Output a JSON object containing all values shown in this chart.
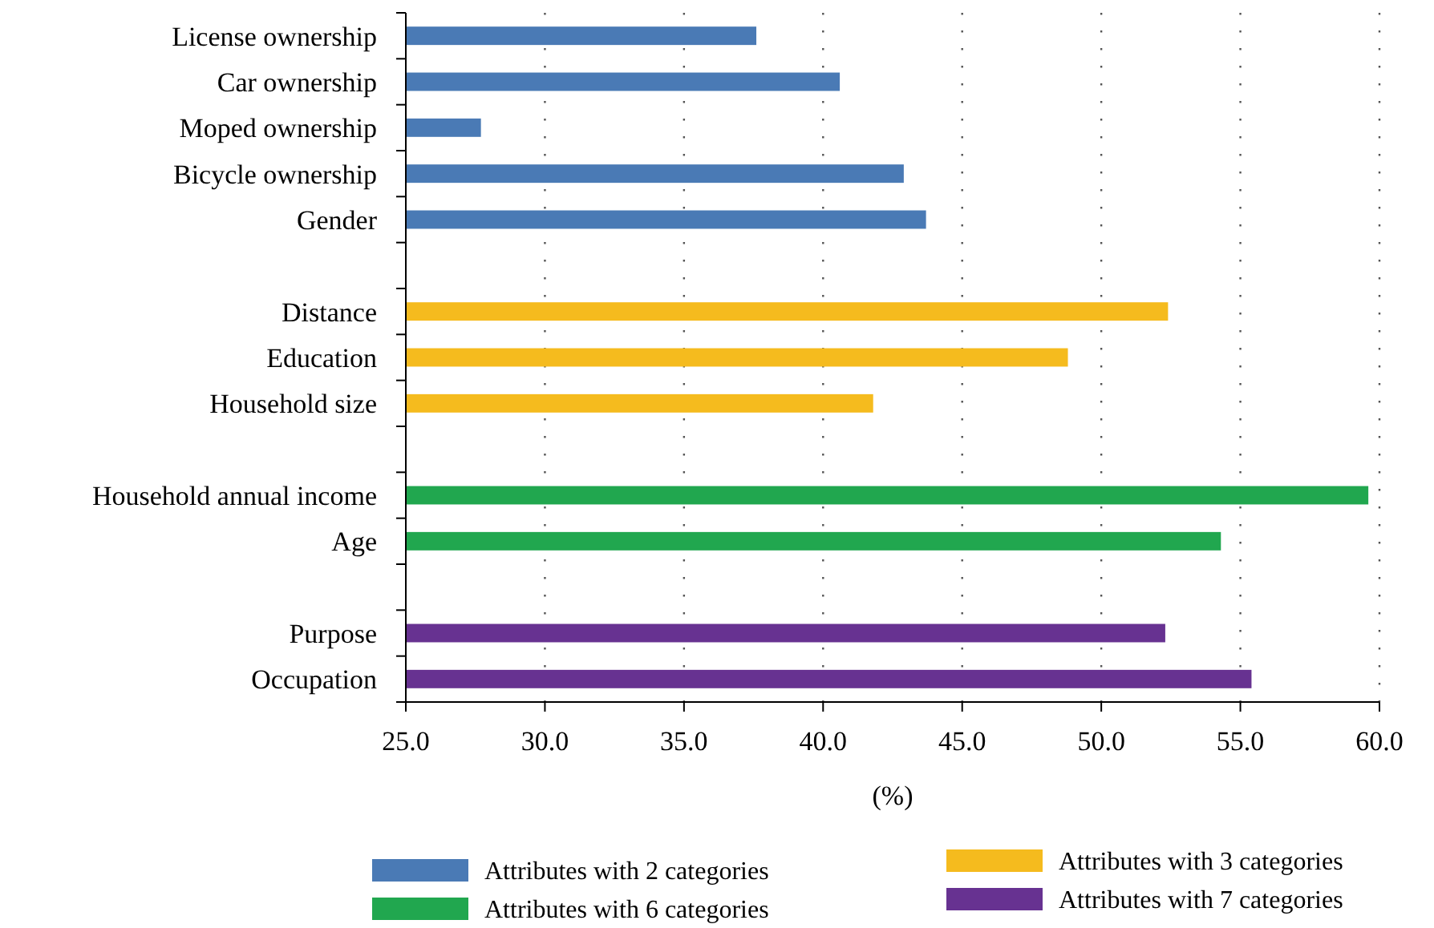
{
  "chart_data": {
    "type": "bar",
    "orientation": "horizontal",
    "xlabel": "(%)",
    "categories": [
      "License ownership",
      "Car ownership",
      "Moped ownership",
      "Bicycle ownership",
      "Gender",
      null,
      "Distance",
      "Education",
      "Household size",
      null,
      "Household annual income",
      "Age",
      null,
      "Purpose",
      "Occupation"
    ],
    "series": [
      {
        "name": "Attributes with 2 categories",
        "color": "#4a7ab5",
        "values": [
          37.6,
          40.6,
          27.7,
          42.9,
          43.7,
          null,
          null,
          null,
          null,
          null,
          null,
          null,
          null,
          null,
          null
        ]
      },
      {
        "name": "Attributes with 3 categories",
        "color": "#f5bb1e",
        "values": [
          null,
          null,
          null,
          null,
          null,
          null,
          52.4,
          48.8,
          41.8,
          null,
          null,
          null,
          null,
          null,
          null
        ]
      },
      {
        "name": "Attributes with 6 categories",
        "color": "#21a74f",
        "values": [
          null,
          null,
          null,
          null,
          null,
          null,
          null,
          null,
          null,
          null,
          59.6,
          54.3,
          null,
          null,
          null
        ]
      },
      {
        "name": "Attributes with 7 categories",
        "color": "#673291",
        "values": [
          null,
          null,
          null,
          null,
          null,
          null,
          null,
          null,
          null,
          null,
          null,
          null,
          null,
          52.3,
          55.4
        ]
      }
    ],
    "xlim": [
      25,
      60
    ],
    "xticks": [
      {
        "value": 25,
        "label": "25.0"
      },
      {
        "value": 30,
        "label": "30.0"
      },
      {
        "value": 35,
        "label": "35.0"
      },
      {
        "value": 40,
        "label": "40.0"
      },
      {
        "value": 45,
        "label": "45.0"
      },
      {
        "value": 50,
        "label": "50.0"
      },
      {
        "value": 55,
        "label": "55.0"
      },
      {
        "value": 60,
        "label": "60.0"
      }
    ],
    "grid": "x",
    "legend": "bottom"
  }
}
